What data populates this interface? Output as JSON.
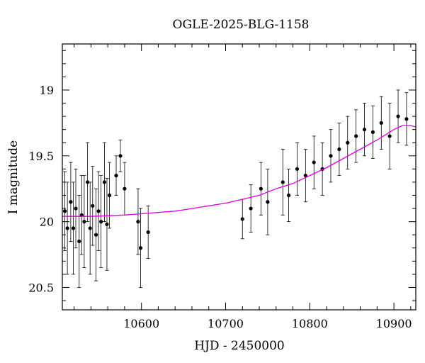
{
  "chart_data": {
    "type": "scatter",
    "title": "OGLE-2025-BLG-1158",
    "xlabel": "HJD - 2450000",
    "ylabel": "I magnitude",
    "xlim": [
      10506,
      10926
    ],
    "ylim": [
      20.67,
      18.65
    ],
    "y_inverted": true,
    "x_ticks": [
      10600,
      10700,
      10800,
      10900
    ],
    "x_tick_labels": [
      "10600",
      "10700",
      "10800",
      "10900"
    ],
    "y_ticks": [
      19,
      19.5,
      20,
      20.5
    ],
    "y_tick_labels": [
      "19",
      "19.5",
      "20",
      "20.5"
    ],
    "grid": false,
    "point_color": "#000000",
    "model_color": "#e000e0",
    "series": [
      {
        "type": "scatter_with_errorbars",
        "x": [
          10509,
          10512,
          10516,
          10519,
          10522,
          10526,
          10529,
          10532,
          10536,
          10539,
          10542,
          10546,
          10549,
          10552,
          10556,
          10559,
          10562,
          10570,
          10575,
          10580,
          10596,
          10599,
          10608,
          10720,
          10730,
          10742,
          10750,
          10768,
          10775,
          10785,
          10795,
          10805,
          10815,
          10825,
          10835,
          10845,
          10855,
          10865,
          10875,
          10885,
          10895,
          10905,
          10915
        ],
        "y": [
          19.92,
          20.05,
          19.85,
          20.05,
          19.9,
          20.15,
          19.95,
          20.0,
          19.7,
          20.05,
          19.88,
          20.1,
          19.92,
          20.0,
          19.7,
          20.02,
          19.8,
          19.65,
          19.5,
          19.75,
          20.0,
          20.2,
          20.08,
          19.98,
          19.9,
          19.75,
          19.85,
          19.7,
          19.8,
          19.6,
          19.65,
          19.55,
          19.6,
          19.5,
          19.45,
          19.4,
          19.35,
          19.3,
          19.32,
          19.25,
          19.35,
          19.2,
          19.22
        ],
        "yerr": [
          0.3,
          0.35,
          0.3,
          0.35,
          0.3,
          0.35,
          0.3,
          0.35,
          0.3,
          0.35,
          0.3,
          0.35,
          0.3,
          0.35,
          0.3,
          0.35,
          0.25,
          0.15,
          0.12,
          0.2,
          0.25,
          0.3,
          0.2,
          0.15,
          0.18,
          0.2,
          0.25,
          0.25,
          0.2,
          0.2,
          0.2,
          0.2,
          0.2,
          0.2,
          0.2,
          0.2,
          0.2,
          0.2,
          0.2,
          0.2,
          0.25,
          0.2,
          0.2
        ]
      },
      {
        "type": "line",
        "x": [
          10506,
          10520,
          10540,
          10560,
          10580,
          10600,
          10620,
          10640,
          10660,
          10680,
          10700,
          10720,
          10740,
          10760,
          10780,
          10800,
          10820,
          10840,
          10860,
          10880,
          10900,
          10910,
          10920,
          10926
        ],
        "y": [
          19.96,
          19.96,
          19.96,
          19.955,
          19.95,
          19.94,
          19.93,
          19.92,
          19.9,
          19.88,
          19.86,
          19.83,
          19.8,
          19.75,
          19.71,
          19.65,
          19.59,
          19.52,
          19.45,
          19.38,
          19.3,
          19.27,
          19.27,
          19.28
        ]
      }
    ]
  }
}
